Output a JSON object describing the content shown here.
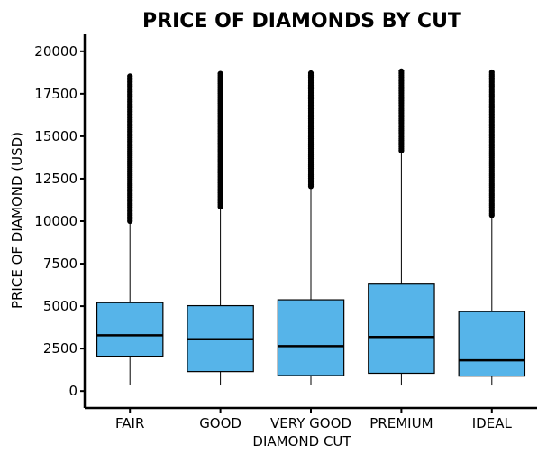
{
  "chart_data": {
    "type": "box",
    "title": "PRICE OF DIAMONDS BY CUT",
    "xlabel": "DIAMOND CUT",
    "ylabel": "PRICE OF DIAMOND (USD)",
    "ylim": [
      -1000,
      21000
    ],
    "yticks": [
      0,
      2500,
      5000,
      7500,
      10000,
      12500,
      15000,
      17500,
      20000
    ],
    "box_color": "#56B4E9",
    "categories": [
      "FAIR",
      "GOOD",
      "VERY GOOD",
      "PREMIUM",
      "IDEAL"
    ],
    "boxes": [
      {
        "category": "FAIR",
        "whisker_low": 337,
        "q1": 2050,
        "median": 3282,
        "q3": 5206,
        "whisker_high": 9950,
        "outliers_low": 10000,
        "outliers_high": 18574
      },
      {
        "category": "GOOD",
        "whisker_low": 327,
        "q1": 1145,
        "median": 3051,
        "q3": 5028,
        "whisker_high": 10850,
        "outliers_low": 10850,
        "outliers_high": 18788
      },
      {
        "category": "VERY GOOD",
        "whisker_low": 336,
        "q1": 912,
        "median": 2648,
        "q3": 5373,
        "whisker_high": 12050,
        "outliers_low": 12050,
        "outliers_high": 18818
      },
      {
        "category": "PREMIUM",
        "whisker_low": 326,
        "q1": 1046,
        "median": 3185,
        "q3": 6296,
        "whisker_high": 14150,
        "outliers_low": 14150,
        "outliers_high": 18823
      },
      {
        "category": "IDEAL",
        "whisker_low": 326,
        "q1": 878,
        "median": 1810,
        "q3": 4678,
        "whisker_high": 10350,
        "outliers_low": 10350,
        "outliers_high": 18806
      }
    ]
  }
}
